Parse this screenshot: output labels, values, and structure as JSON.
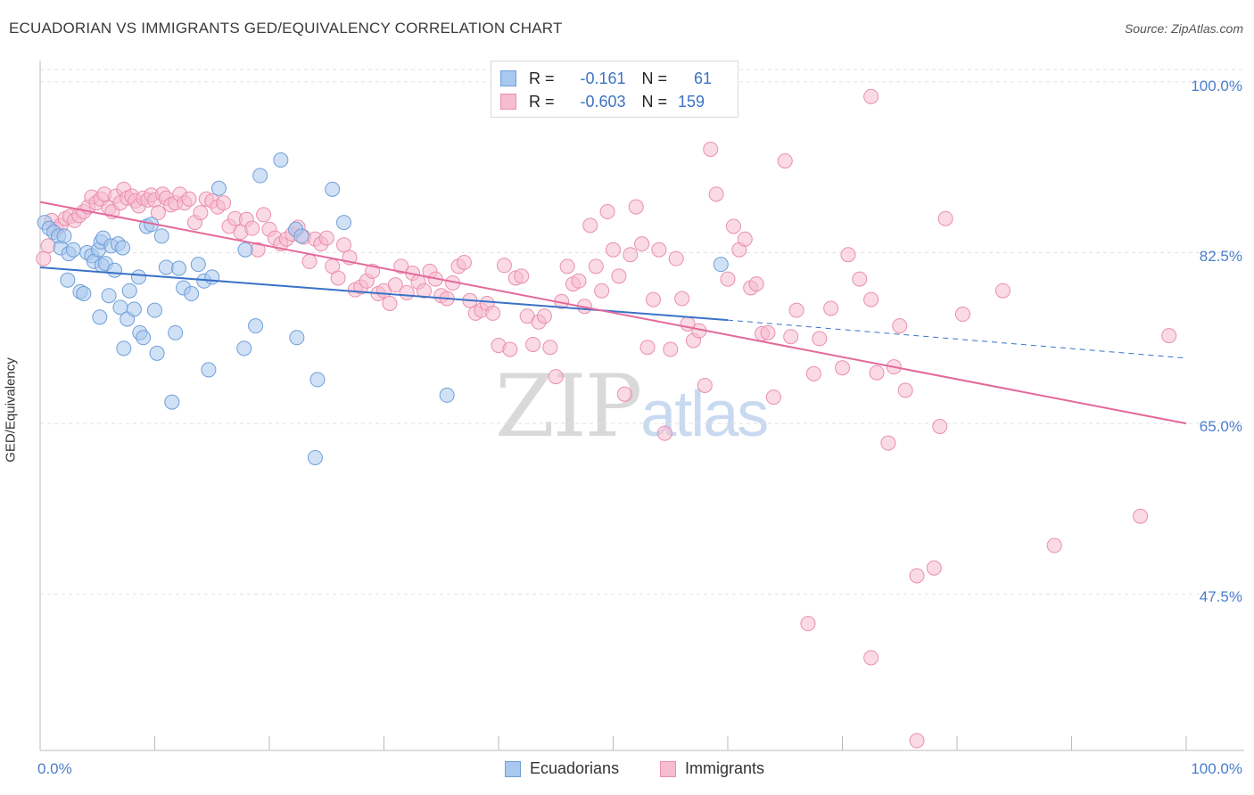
{
  "header": {
    "title": "ECUADORIAN VS IMMIGRANTS GED/EQUIVALENCY CORRELATION CHART",
    "source": "Source: ZipAtlas.com"
  },
  "watermark": {
    "zip": "ZIP",
    "atlas": "atlas"
  },
  "legend_top": {
    "rows": [
      {
        "r_label": "R =",
        "r_value": "-0.161",
        "n_label": "N =",
        "n_value": "61"
      },
      {
        "r_label": "R =",
        "r_value": "-0.603",
        "n_label": "N =",
        "n_value": "159"
      }
    ]
  },
  "legend_bottom": {
    "series1": "Ecuadorians",
    "series2": "Immigrants"
  },
  "colors": {
    "ecuadorians_fill": "#a9c8ef",
    "ecuadorians_stroke": "#6f9fd8",
    "ecuadorians_line": "#3a72c8",
    "immigrants_fill": "#f6bcd0",
    "immigrants_stroke": "#ea8fae",
    "immigrants_line": "#e3699a",
    "tick_label": "#4a7ec9",
    "grid": "#e2e2e2"
  },
  "chart_data": {
    "type": "scatter",
    "title": "ECUADORIAN VS IMMIGRANTS GED/EQUIVALENCY CORRELATION CHART",
    "xlabel": "",
    "ylabel": "GED/Equivalency",
    "xlim": [
      0,
      100
    ],
    "ylim": [
      31.5,
      102
    ],
    "x_tick_labels": [
      "0.0%",
      "100.0%"
    ],
    "y_ticks": [
      47.5,
      65.0,
      82.5,
      100.0
    ],
    "y_tick_labels": [
      "47.5%",
      "65.0%",
      "82.5%",
      "100.0%"
    ],
    "grid": true,
    "legend_position": "top-center",
    "series": [
      {
        "name": "Ecuadorians",
        "r": -0.161,
        "n": 61,
        "trend": {
          "x0": 0,
          "y0": 81.0,
          "x1": 60,
          "y1": 75.6,
          "dashed_to_x": 100,
          "dashed_to_y": 71.7
        },
        "points": [
          [
            0.4,
            85.6
          ],
          [
            0.8,
            85.0
          ],
          [
            1.2,
            84.6
          ],
          [
            1.6,
            84.2
          ],
          [
            1.8,
            83.0
          ],
          [
            2.1,
            84.2
          ],
          [
            2.5,
            82.4
          ],
          [
            2.9,
            82.8
          ],
          [
            3.5,
            78.5
          ],
          [
            3.8,
            78.3
          ],
          [
            2.4,
            79.7
          ],
          [
            4.1,
            82.5
          ],
          [
            4.5,
            82.2
          ],
          [
            4.7,
            81.6
          ],
          [
            5.1,
            82.8
          ],
          [
            5.2,
            75.9
          ],
          [
            5.3,
            83.6
          ],
          [
            5.4,
            81.2
          ],
          [
            5.5,
            84.0
          ],
          [
            5.7,
            81.4
          ],
          [
            6.0,
            78.1
          ],
          [
            6.2,
            83.2
          ],
          [
            6.5,
            80.7
          ],
          [
            6.8,
            83.4
          ],
          [
            7.0,
            76.9
          ],
          [
            7.2,
            83.0
          ],
          [
            7.3,
            72.7
          ],
          [
            7.6,
            75.7
          ],
          [
            7.8,
            78.6
          ],
          [
            8.2,
            76.7
          ],
          [
            8.6,
            80.0
          ],
          [
            8.7,
            74.3
          ],
          [
            9.0,
            73.8
          ],
          [
            9.3,
            85.2
          ],
          [
            9.7,
            85.4
          ],
          [
            10.0,
            76.6
          ],
          [
            10.2,
            72.2
          ],
          [
            10.6,
            84.2
          ],
          [
            11.0,
            81.0
          ],
          [
            11.5,
            67.2
          ],
          [
            11.8,
            74.3
          ],
          [
            12.1,
            80.9
          ],
          [
            12.5,
            78.9
          ],
          [
            13.2,
            78.3
          ],
          [
            13.8,
            81.3
          ],
          [
            14.3,
            79.6
          ],
          [
            14.7,
            70.5
          ],
          [
            15.0,
            80.0
          ],
          [
            15.6,
            89.1
          ],
          [
            17.8,
            72.7
          ],
          [
            17.9,
            82.8
          ],
          [
            18.8,
            75.0
          ],
          [
            19.2,
            90.4
          ],
          [
            21.0,
            92.0
          ],
          [
            22.3,
            84.9
          ],
          [
            22.4,
            73.8
          ],
          [
            22.8,
            84.2
          ],
          [
            24.2,
            69.5
          ],
          [
            25.5,
            89.0
          ],
          [
            26.5,
            85.6
          ],
          [
            24.0,
            61.5
          ],
          [
            35.5,
            67.9
          ],
          [
            59.4,
            81.3
          ]
        ]
      },
      {
        "name": "Immigrants",
        "r": -0.603,
        "n": 159,
        "trend": {
          "x0": 0,
          "y0": 87.7,
          "x1": 100,
          "y1": 65.0
        },
        "points": [
          [
            0.3,
            81.9
          ],
          [
            0.7,
            83.2
          ],
          [
            1.0,
            85.8
          ],
          [
            1.4,
            84.9
          ],
          [
            1.8,
            85.3
          ],
          [
            2.2,
            86.0
          ],
          [
            2.6,
            86.2
          ],
          [
            3.0,
            85.8
          ],
          [
            3.4,
            86.3
          ],
          [
            3.8,
            86.7
          ],
          [
            4.2,
            87.2
          ],
          [
            4.5,
            88.2
          ],
          [
            4.9,
            87.6
          ],
          [
            5.3,
            88.0
          ],
          [
            5.6,
            88.5
          ],
          [
            6.0,
            87.1
          ],
          [
            6.3,
            86.7
          ],
          [
            6.6,
            88.3
          ],
          [
            7.0,
            87.6
          ],
          [
            7.3,
            89.0
          ],
          [
            7.6,
            88.1
          ],
          [
            8.0,
            88.3
          ],
          [
            8.3,
            87.8
          ],
          [
            8.6,
            87.3
          ],
          [
            9.0,
            88.1
          ],
          [
            9.4,
            87.9
          ],
          [
            9.7,
            88.4
          ],
          [
            10.0,
            87.9
          ],
          [
            10.3,
            86.6
          ],
          [
            10.7,
            88.5
          ],
          [
            11.0,
            88.1
          ],
          [
            11.4,
            87.4
          ],
          [
            11.8,
            87.6
          ],
          [
            12.2,
            88.5
          ],
          [
            12.6,
            87.6
          ],
          [
            13.0,
            88.0
          ],
          [
            13.5,
            85.6
          ],
          [
            14.0,
            86.6
          ],
          [
            14.5,
            88.0
          ],
          [
            15.0,
            87.8
          ],
          [
            15.5,
            87.2
          ],
          [
            16.0,
            87.6
          ],
          [
            16.5,
            85.2
          ],
          [
            17.0,
            86.0
          ],
          [
            17.5,
            84.6
          ],
          [
            18.0,
            85.9
          ],
          [
            18.5,
            85.0
          ],
          [
            19.0,
            82.8
          ],
          [
            19.5,
            86.4
          ],
          [
            20.0,
            84.9
          ],
          [
            20.5,
            84.0
          ],
          [
            21.0,
            83.4
          ],
          [
            21.5,
            83.9
          ],
          [
            22.0,
            84.4
          ],
          [
            22.5,
            85.1
          ],
          [
            23.0,
            84.1
          ],
          [
            23.5,
            81.6
          ],
          [
            24.0,
            83.9
          ],
          [
            24.5,
            83.4
          ],
          [
            25.0,
            84.0
          ],
          [
            25.5,
            81.1
          ],
          [
            26.0,
            79.9
          ],
          [
            26.5,
            83.3
          ],
          [
            27.0,
            82.0
          ],
          [
            27.5,
            78.7
          ],
          [
            28.0,
            79.0
          ],
          [
            28.5,
            79.6
          ],
          [
            29.0,
            80.6
          ],
          [
            29.5,
            78.3
          ],
          [
            30.0,
            78.6
          ],
          [
            30.5,
            77.3
          ],
          [
            31.0,
            79.2
          ],
          [
            31.5,
            81.1
          ],
          [
            32.0,
            78.4
          ],
          [
            32.5,
            80.4
          ],
          [
            33.0,
            79.5
          ],
          [
            33.5,
            78.6
          ],
          [
            34.0,
            80.6
          ],
          [
            34.5,
            79.8
          ],
          [
            35.0,
            78.1
          ],
          [
            35.5,
            77.8
          ],
          [
            36.0,
            79.4
          ],
          [
            36.5,
            81.1
          ],
          [
            37.0,
            81.5
          ],
          [
            37.5,
            77.6
          ],
          [
            38.0,
            76.3
          ],
          [
            38.5,
            76.6
          ],
          [
            39.0,
            77.3
          ],
          [
            39.5,
            76.3
          ],
          [
            40.0,
            73.0
          ],
          [
            40.5,
            81.2
          ],
          [
            41.0,
            72.6
          ],
          [
            41.5,
            79.9
          ],
          [
            42.0,
            80.1
          ],
          [
            42.5,
            76.0
          ],
          [
            43.0,
            73.1
          ],
          [
            43.5,
            75.4
          ],
          [
            44.0,
            76.0
          ],
          [
            44.5,
            72.8
          ],
          [
            45.0,
            69.8
          ],
          [
            45.5,
            77.5
          ],
          [
            46.0,
            81.1
          ],
          [
            46.5,
            79.3
          ],
          [
            47.0,
            79.6
          ],
          [
            47.5,
            77.0
          ],
          [
            48.0,
            85.3
          ],
          [
            48.5,
            81.1
          ],
          [
            49.0,
            78.6
          ],
          [
            49.5,
            86.7
          ],
          [
            50.0,
            82.8
          ],
          [
            50.5,
            80.1
          ],
          [
            51.0,
            68.0
          ],
          [
            51.5,
            82.3
          ],
          [
            52.0,
            87.2
          ],
          [
            52.5,
            83.4
          ],
          [
            53.0,
            72.8
          ],
          [
            53.5,
            77.7
          ],
          [
            54.0,
            82.8
          ],
          [
            54.5,
            64.0
          ],
          [
            55.0,
            72.6
          ],
          [
            55.5,
            81.9
          ],
          [
            56.0,
            77.8
          ],
          [
            56.5,
            75.2
          ],
          [
            57.0,
            73.5
          ],
          [
            57.5,
            74.5
          ],
          [
            58.0,
            68.9
          ],
          [
            58.5,
            93.1
          ],
          [
            59.0,
            88.5
          ],
          [
            60.0,
            79.8
          ],
          [
            60.5,
            85.2
          ],
          [
            61.0,
            82.8
          ],
          [
            61.5,
            83.9
          ],
          [
            62.0,
            78.9
          ],
          [
            62.5,
            79.3
          ],
          [
            63.0,
            74.2
          ],
          [
            63.5,
            74.3
          ],
          [
            64.0,
            67.7
          ],
          [
            65.0,
            91.9
          ],
          [
            65.5,
            73.9
          ],
          [
            66.0,
            76.6
          ],
          [
            67.5,
            70.1
          ],
          [
            68.0,
            73.7
          ],
          [
            69.0,
            76.8
          ],
          [
            70.0,
            70.7
          ],
          [
            70.5,
            82.3
          ],
          [
            71.5,
            79.8
          ],
          [
            72.5,
            77.7
          ],
          [
            73.0,
            70.2
          ],
          [
            74.0,
            63.0
          ],
          [
            74.5,
            70.8
          ],
          [
            75.0,
            75.0
          ],
          [
            75.5,
            68.4
          ],
          [
            76.5,
            49.4
          ],
          [
            78.0,
            50.2
          ],
          [
            78.5,
            64.7
          ],
          [
            79.0,
            86.0
          ],
          [
            80.5,
            76.2
          ],
          [
            84.0,
            78.6
          ],
          [
            88.5,
            52.5
          ],
          [
            96.0,
            55.5
          ],
          [
            98.5,
            74.0
          ],
          [
            72.5,
            98.5
          ],
          [
            67.0,
            44.5
          ],
          [
            72.5,
            41.0
          ],
          [
            76.5,
            32.5
          ]
        ]
      }
    ]
  }
}
